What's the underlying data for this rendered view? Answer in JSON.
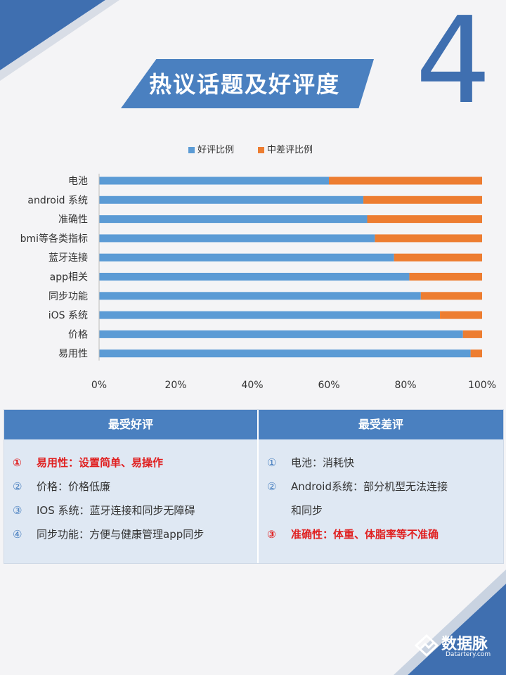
{
  "header": {
    "title": "热议话题及好评度",
    "number": "4"
  },
  "colors": {
    "accent": "#4a80c0",
    "good": "#5b9bd5",
    "bad": "#ed7d31"
  },
  "chart_data": {
    "type": "bar",
    "orientation": "horizontal",
    "stacked": true,
    "categories": [
      "电池",
      "android 系统",
      "准确性",
      "bmi等各类指标",
      "蓝牙连接",
      "app相关",
      "同步功能",
      "iOS 系统",
      "价格",
      "易用性"
    ],
    "series": [
      {
        "name": "好评比例",
        "values": [
          60,
          69,
          70,
          72,
          77,
          81,
          84,
          89,
          95,
          97
        ]
      },
      {
        "name": "中差评比例",
        "values": [
          40,
          31,
          30,
          28,
          23,
          19,
          16,
          11,
          5,
          3
        ]
      }
    ],
    "xticks": [
      "0%",
      "20%",
      "40%",
      "60%",
      "80%",
      "100%"
    ],
    "xlim": [
      0,
      100
    ],
    "legend": "top-center",
    "grid": false
  },
  "panel": {
    "left_title": "最受好评",
    "right_title": "最受差评",
    "left_items": [
      {
        "num": "①",
        "text": "易用性：设置简单、易操作",
        "hot": true
      },
      {
        "num": "②",
        "text": "价格：价格低廉",
        "hot": false
      },
      {
        "num": "③",
        "text": "IOS 系统：蓝牙连接和同步无障碍",
        "hot": false
      },
      {
        "num": "④",
        "text": "同步功能：方便与健康管理app同步",
        "hot": false
      }
    ],
    "right_items": [
      {
        "num": "①",
        "text": "电池：消耗快",
        "hot": false
      },
      {
        "num": "②",
        "text": "Android系统：部分机型无法连接",
        "hot": false
      },
      {
        "num": "",
        "text": "和同步",
        "hot": false
      },
      {
        "num": "③",
        "text": "准确性：体重、体脂率等不准确",
        "hot": true
      }
    ]
  },
  "logo": {
    "name": "数据脉",
    "sub": "Datartery.com"
  }
}
